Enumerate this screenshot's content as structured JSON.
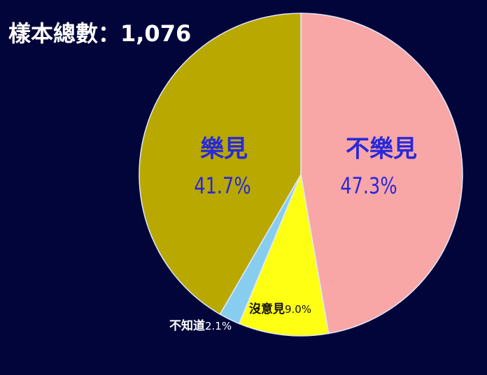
{
  "chart_data": {
    "type": "pie",
    "title": "樣本總數：1,076",
    "categories": [
      "不樂見",
      "沒意見",
      "不知道",
      "樂見"
    ],
    "values": [
      47.3,
      9.0,
      2.1,
      41.7
    ],
    "value_labels": [
      "47.3%",
      "9.0%",
      "2.1%",
      "41.7%"
    ],
    "colors": [
      "#f9a6a6",
      "#ffff14",
      "#87cdf0",
      "#b8a800"
    ]
  }
}
